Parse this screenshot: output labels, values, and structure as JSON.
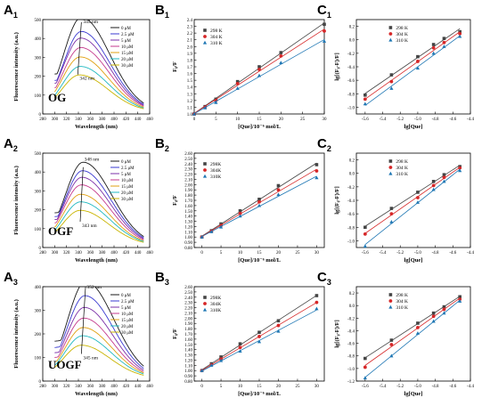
{
  "colors": {
    "A_series": [
      "#1a1a1a",
      "#3a3ad0",
      "#7b2fa8",
      "#c53a8c",
      "#e0a010",
      "#1fb8c0",
      "#c9b400"
    ],
    "B_series": [
      "#444444",
      "#d62728",
      "#1f77b4"
    ]
  },
  "chart_data": [
    {
      "id": "A1",
      "letter": "A",
      "sub": "1",
      "type": "line",
      "xlabel": "Wavelength (nm)",
      "ylabel": "Fluorescence intensity (a.u.)",
      "xlim": [
        280,
        460
      ],
      "ylim": [
        0,
        500
      ],
      "xticks": [
        280,
        300,
        320,
        340,
        360,
        380,
        400,
        420,
        440,
        460
      ],
      "yticks": [
        0,
        100,
        200,
        300,
        400,
        500
      ],
      "label_inside": "OG",
      "annotations": [
        {
          "text": "345 nm",
          "x": 348,
          "y": 490
        },
        {
          "text": "342 nm",
          "x": 342,
          "y": 190
        }
      ],
      "legend": [
        "0 μM",
        "2.5 μM",
        "5 μM",
        "10 μM",
        "15 μM",
        "20 μM",
        "30 μM"
      ],
      "peaks": [
        500,
        425,
        390,
        340,
        290,
        240,
        195
      ],
      "peak_x": [
        345,
        345,
        344,
        344,
        343,
        343,
        342
      ]
    },
    {
      "id": "A2",
      "letter": "A",
      "sub": "2",
      "type": "line",
      "xlabel": "Wavelength (nm)",
      "ylabel": "Fluorescence intensity (a.u.)",
      "xlim": [
        280,
        460
      ],
      "ylim": [
        0,
        500
      ],
      "xticks": [
        280,
        300,
        320,
        340,
        360,
        380,
        400,
        420,
        440,
        460
      ],
      "yticks": [
        0,
        100,
        200,
        300,
        400,
        500
      ],
      "label_inside": "OGF",
      "annotations": [
        {
          "text": "348 nm",
          "x": 350,
          "y": 470
        },
        {
          "text": "343 nm",
          "x": 346,
          "y": 118
        }
      ],
      "legend": [
        "0 μM",
        "2.5 μM",
        "5 μM",
        "10 μM",
        "15 μM",
        "20 μM",
        "30 μM"
      ],
      "peaks": [
        440,
        395,
        360,
        320,
        270,
        230,
        185
      ],
      "peak_x": [
        348,
        347,
        346,
        345,
        344,
        344,
        343
      ]
    },
    {
      "id": "A3",
      "letter": "A",
      "sub": "3",
      "type": "line",
      "xlabel": "Wavelength (nm)",
      "ylabel": "Fluorescence intensity (a.u.)",
      "xlim": [
        280,
        460
      ],
      "ylim": [
        0,
        400
      ],
      "xticks": [
        280,
        300,
        320,
        340,
        360,
        380,
        400,
        420,
        440,
        460
      ],
      "yticks": [
        0,
        100,
        200,
        300,
        400
      ],
      "label_inside": "UOGF",
      "annotations": [
        {
          "text": "352 nm",
          "x": 354,
          "y": 415
        },
        {
          "text": "345 nm",
          "x": 348,
          "y": 100
        }
      ],
      "legend": [
        "0 μM",
        "2.5 μM",
        "5 μM",
        "10 μM",
        "15 μM",
        "20 μM",
        "30 μM"
      ],
      "peaks": [
        410,
        350,
        300,
        255,
        215,
        180,
        140
      ],
      "peak_x": [
        352,
        351,
        350,
        349,
        348,
        347,
        345
      ]
    },
    {
      "id": "B1",
      "letter": "B",
      "sub": "1",
      "type": "scatter",
      "xlabel": "[Que]/10⁻⁶ mol/L",
      "ylabel": "F₀/F",
      "xlim": [
        0,
        30
      ],
      "ylim": [
        1.0,
        2.4
      ],
      "xticks": [
        0,
        5,
        10,
        15,
        20,
        25,
        30
      ],
      "yticks": [
        1.0,
        1.1,
        1.2,
        1.3,
        1.4,
        1.5,
        1.6,
        1.7,
        1.8,
        1.9,
        2.0,
        2.1,
        2.2,
        2.3,
        2.4
      ],
      "legend_pos": "top-left",
      "x": [
        0,
        2.5,
        5,
        10,
        15,
        20,
        30
      ],
      "series": [
        {
          "name": "298 K",
          "marker": "square",
          "values": [
            1.0,
            1.11,
            1.22,
            1.48,
            1.7,
            1.91,
            2.33
          ]
        },
        {
          "name": "304 K",
          "marker": "circle",
          "values": [
            1.0,
            1.1,
            1.2,
            1.45,
            1.66,
            1.86,
            2.23
          ]
        },
        {
          "name": "310 K",
          "marker": "triangle",
          "values": [
            1.0,
            1.09,
            1.17,
            1.38,
            1.57,
            1.76,
            2.08
          ]
        }
      ]
    },
    {
      "id": "B2",
      "letter": "B",
      "sub": "2",
      "type": "scatter",
      "xlabel": "[Que]/10⁻⁶ mol/L",
      "ylabel": "F₀/F",
      "xlim": [
        -2,
        32
      ],
      "ylim": [
        0.8,
        2.6
      ],
      "xticks": [
        0,
        5,
        10,
        15,
        20,
        25,
        30
      ],
      "yticks": [
        0.8,
        0.9,
        1.0,
        1.1,
        1.2,
        1.3,
        1.4,
        1.5,
        1.6,
        1.7,
        1.8,
        1.9,
        2.0,
        2.1,
        2.2,
        2.3,
        2.4,
        2.5,
        2.6
      ],
      "legend_pos": "top-left",
      "x": [
        0,
        2.5,
        5,
        10,
        15,
        20,
        30
      ],
      "series": [
        {
          "name": "298K",
          "marker": "square",
          "values": [
            1.0,
            1.12,
            1.25,
            1.5,
            1.72,
            1.98,
            2.38
          ]
        },
        {
          "name": "304K",
          "marker": "circle",
          "values": [
            1.0,
            1.11,
            1.22,
            1.45,
            1.67,
            1.9,
            2.26
          ]
        },
        {
          "name": "310K",
          "marker": "triangle",
          "values": [
            1.0,
            1.1,
            1.19,
            1.4,
            1.6,
            1.81,
            2.13
          ]
        }
      ]
    },
    {
      "id": "B3",
      "letter": "B",
      "sub": "3",
      "type": "scatter",
      "xlabel": "[Que]/10⁻⁶ mol/L",
      "ylabel": "F₀/F",
      "xlim": [
        -2,
        32
      ],
      "ylim": [
        0.8,
        2.6
      ],
      "xticks": [
        0,
        5,
        10,
        15,
        20,
        25,
        30
      ],
      "yticks": [
        0.8,
        0.9,
        1.0,
        1.1,
        1.2,
        1.3,
        1.4,
        1.5,
        1.6,
        1.7,
        1.8,
        1.9,
        2.0,
        2.1,
        2.2,
        2.3,
        2.4,
        2.5,
        2.6
      ],
      "legend_pos": "top-left",
      "x": [
        0,
        2.5,
        5,
        10,
        15,
        20,
        30
      ],
      "series": [
        {
          "name": "298K",
          "marker": "square",
          "values": [
            1.0,
            1.13,
            1.26,
            1.51,
            1.73,
            1.95,
            2.43
          ]
        },
        {
          "name": "304K",
          "marker": "circle",
          "values": [
            1.0,
            1.11,
            1.22,
            1.44,
            1.65,
            1.86,
            2.3
          ]
        },
        {
          "name": "310K",
          "marker": "triangle",
          "values": [
            1.0,
            1.1,
            1.19,
            1.37,
            1.55,
            1.75,
            2.18
          ]
        }
      ]
    },
    {
      "id": "C1",
      "letter": "C",
      "sub": "1",
      "type": "scatter",
      "xlabel": "lg[Que]",
      "ylabel": "lg[(F₀-F)/F]",
      "xlim": [
        -5.7,
        -4.4
      ],
      "ylim": [
        -1.1,
        0.3
      ],
      "xticks": [
        -5.6,
        -5.4,
        -5.2,
        -5.0,
        -4.8,
        -4.6,
        -4.4
      ],
      "yticks": [
        -1.0,
        -0.8,
        -0.6,
        -0.4,
        -0.2,
        0.0,
        0.2
      ],
      "legend_pos": "top-center",
      "x": [
        -5.6,
        -5.3,
        -5.0,
        -4.82,
        -4.7,
        -4.52
      ],
      "series": [
        {
          "name": "298 K",
          "marker": "square",
          "values": [
            -0.82,
            -0.52,
            -0.25,
            -0.07,
            0.02,
            0.12
          ]
        },
        {
          "name": "304 K",
          "marker": "circle",
          "values": [
            -0.88,
            -0.62,
            -0.32,
            -0.12,
            -0.04,
            0.09
          ]
        },
        {
          "name": "310 K",
          "marker": "triangle",
          "values": [
            -0.95,
            -0.72,
            -0.42,
            -0.2,
            -0.1,
            0.05
          ]
        }
      ]
    },
    {
      "id": "C2",
      "letter": "C",
      "sub": "2",
      "type": "scatter",
      "xlabel": "lg[Que]",
      "ylabel": "lg[(F₀-F)/F]",
      "xlim": [
        -5.7,
        -4.4
      ],
      "ylim": [
        -1.1,
        0.3
      ],
      "xticks": [
        -5.6,
        -5.4,
        -5.2,
        -5.0,
        -4.8,
        -4.6,
        -4.4
      ],
      "yticks": [
        -1.0,
        -0.8,
        -0.6,
        -0.4,
        -0.2,
        0.0,
        0.2
      ],
      "legend_pos": "top-center",
      "x": [
        -5.6,
        -5.3,
        -5.0,
        -4.82,
        -4.7,
        -4.52
      ],
      "series": [
        {
          "name": "298 K",
          "marker": "square",
          "values": [
            -0.8,
            -0.52,
            -0.28,
            -0.12,
            -0.02,
            0.1
          ]
        },
        {
          "name": "304 K",
          "marker": "circle",
          "values": [
            -0.9,
            -0.6,
            -0.36,
            -0.18,
            -0.06,
            0.08
          ]
        },
        {
          "name": "310 K",
          "marker": "triangle",
          "values": [
            -1.08,
            -0.72,
            -0.43,
            -0.24,
            -0.12,
            0.04
          ]
        }
      ]
    },
    {
      "id": "C3",
      "letter": "C",
      "sub": "3",
      "type": "scatter",
      "xlabel": "lg[Que]",
      "ylabel": "lg[(F₀-F)/F]",
      "xlim": [
        -5.7,
        -4.4
      ],
      "ylim": [
        -1.2,
        0.3
      ],
      "xticks": [
        -5.6,
        -5.4,
        -5.2,
        -5.0,
        -4.8,
        -4.6,
        -4.4
      ],
      "yticks": [
        -1.2,
        -1.0,
        -0.8,
        -0.6,
        -0.4,
        -0.2,
        0.0,
        0.2
      ],
      "legend_pos": "top-center",
      "x": [
        -5.6,
        -5.3,
        -5.0,
        -4.82,
        -4.7,
        -4.52
      ],
      "series": [
        {
          "name": "298 K",
          "marker": "square",
          "values": [
            -0.84,
            -0.55,
            -0.28,
            -0.12,
            -0.02,
            0.14
          ]
        },
        {
          "name": "304 K",
          "marker": "circle",
          "values": [
            -0.98,
            -0.62,
            -0.35,
            -0.17,
            -0.06,
            0.1
          ]
        },
        {
          "name": "310 K",
          "marker": "triangle",
          "values": [
            -1.15,
            -0.8,
            -0.44,
            -0.25,
            -0.12,
            0.07
          ]
        }
      ]
    }
  ]
}
